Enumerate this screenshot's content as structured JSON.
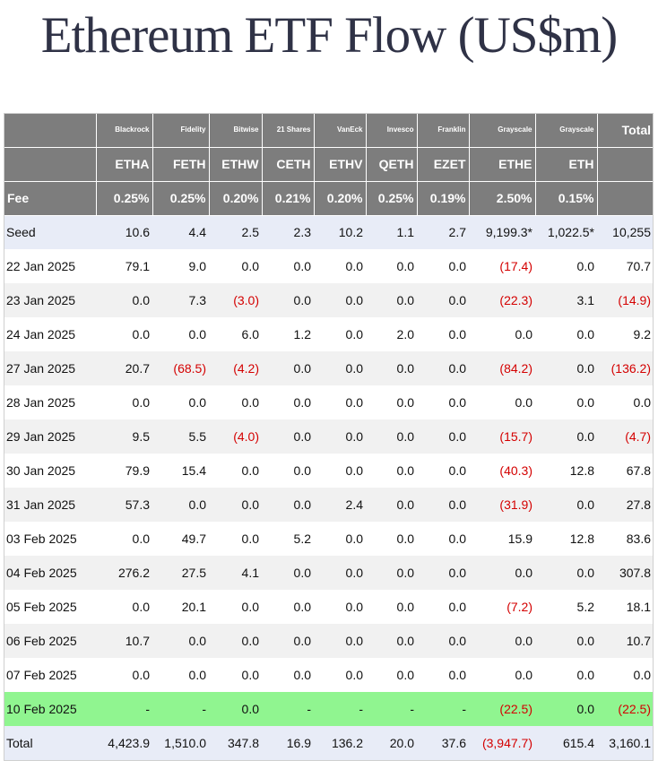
{
  "title": "Ethereum ETF Flow (US$m)",
  "header": {
    "issuers": [
      "Blackrock",
      "Fidelity",
      "Bitwise",
      "21 Shares",
      "VanEck",
      "Invesco",
      "Franklin",
      "Grayscale",
      "Grayscale"
    ],
    "total_label": "Total",
    "tickers": [
      "ETHA",
      "FETH",
      "ETHW",
      "CETH",
      "ETHV",
      "QETH",
      "EZET",
      "ETHE",
      "ETH"
    ],
    "fee_label": "Fee",
    "fees": [
      "0.25%",
      "0.25%",
      "0.20%",
      "0.21%",
      "0.20%",
      "0.25%",
      "0.19%",
      "2.50%",
      "0.15%"
    ]
  },
  "rows": [
    {
      "label": "Seed",
      "style": "seed",
      "values": [
        "10.6",
        "4.4",
        "2.5",
        "2.3",
        "10.2",
        "1.1",
        "2.7",
        "9,199.3*",
        "1,022.5*",
        "10,255"
      ]
    },
    {
      "label": "22 Jan 2025",
      "style": "odd",
      "values": [
        "79.1",
        "9.0",
        "0.0",
        "0.0",
        "0.0",
        "0.0",
        "0.0",
        "(17.4)",
        "0.0",
        "70.7"
      ]
    },
    {
      "label": "23 Jan 2025",
      "style": "even",
      "values": [
        "0.0",
        "7.3",
        "(3.0)",
        "0.0",
        "0.0",
        "0.0",
        "0.0",
        "(22.3)",
        "3.1",
        "(14.9)"
      ]
    },
    {
      "label": "24 Jan 2025",
      "style": "odd",
      "values": [
        "0.0",
        "0.0",
        "6.0",
        "1.2",
        "0.0",
        "2.0",
        "0.0",
        "0.0",
        "0.0",
        "9.2"
      ]
    },
    {
      "label": "27 Jan 2025",
      "style": "even",
      "values": [
        "20.7",
        "(68.5)",
        "(4.2)",
        "0.0",
        "0.0",
        "0.0",
        "0.0",
        "(84.2)",
        "0.0",
        "(136.2)"
      ]
    },
    {
      "label": "28 Jan 2025",
      "style": "odd",
      "values": [
        "0.0",
        "0.0",
        "0.0",
        "0.0",
        "0.0",
        "0.0",
        "0.0",
        "0.0",
        "0.0",
        "0.0"
      ]
    },
    {
      "label": "29 Jan 2025",
      "style": "even",
      "values": [
        "9.5",
        "5.5",
        "(4.0)",
        "0.0",
        "0.0",
        "0.0",
        "0.0",
        "(15.7)",
        "0.0",
        "(4.7)"
      ]
    },
    {
      "label": "30 Jan 2025",
      "style": "odd",
      "values": [
        "79.9",
        "15.4",
        "0.0",
        "0.0",
        "0.0",
        "0.0",
        "0.0",
        "(40.3)",
        "12.8",
        "67.8"
      ]
    },
    {
      "label": "31 Jan 2025",
      "style": "even",
      "values": [
        "57.3",
        "0.0",
        "0.0",
        "0.0",
        "2.4",
        "0.0",
        "0.0",
        "(31.9)",
        "0.0",
        "27.8"
      ]
    },
    {
      "label": "03 Feb 2025",
      "style": "odd",
      "values": [
        "0.0",
        "49.7",
        "0.0",
        "5.2",
        "0.0",
        "0.0",
        "0.0",
        "15.9",
        "12.8",
        "83.6"
      ]
    },
    {
      "label": "04 Feb 2025",
      "style": "even",
      "values": [
        "276.2",
        "27.5",
        "4.1",
        "0.0",
        "0.0",
        "0.0",
        "0.0",
        "0.0",
        "0.0",
        "307.8"
      ]
    },
    {
      "label": "05 Feb 2025",
      "style": "odd",
      "values": [
        "0.0",
        "20.1",
        "0.0",
        "0.0",
        "0.0",
        "0.0",
        "0.0",
        "(7.2)",
        "5.2",
        "18.1"
      ]
    },
    {
      "label": "06 Feb 2025",
      "style": "even",
      "values": [
        "10.7",
        "0.0",
        "0.0",
        "0.0",
        "0.0",
        "0.0",
        "0.0",
        "0.0",
        "0.0",
        "10.7"
      ]
    },
    {
      "label": "07 Feb 2025",
      "style": "odd",
      "values": [
        "0.0",
        "0.0",
        "0.0",
        "0.0",
        "0.0",
        "0.0",
        "0.0",
        "0.0",
        "0.0",
        "0.0"
      ]
    },
    {
      "label": "10 Feb 2025",
      "style": "highlight",
      "values": [
        "-",
        "-",
        "0.0",
        "-",
        "-",
        "-",
        "-",
        "(22.5)",
        "0.0",
        "(22.5)"
      ]
    },
    {
      "label": "Total",
      "style": "total-row",
      "values": [
        "4,423.9",
        "1,510.0",
        "347.8",
        "16.9",
        "136.2",
        "20.0",
        "37.6",
        "(3,947.7)",
        "615.4",
        "3,160.1"
      ]
    }
  ],
  "colors": {
    "header_bg": "#7d7d7d",
    "negative": "#d40000",
    "highlight_row": "#90f590",
    "seed_total_bg": "#e8ecf7",
    "title": "#2f3246"
  }
}
